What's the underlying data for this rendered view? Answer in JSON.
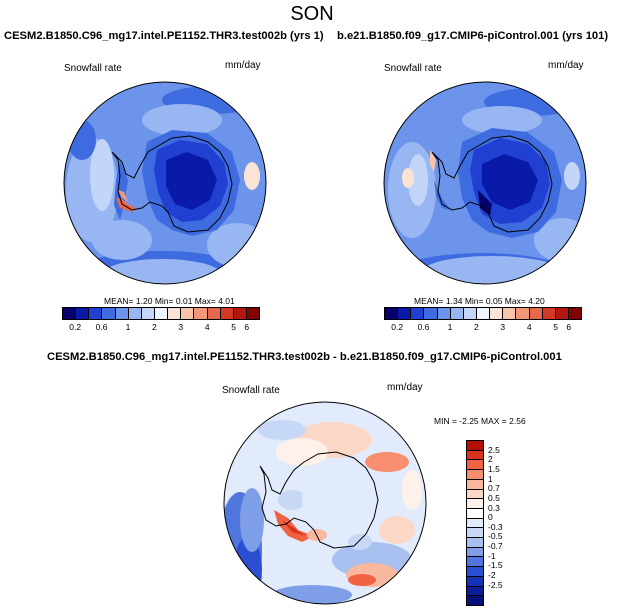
{
  "page": {
    "title": "SON"
  },
  "panels": [
    {
      "id": "top-left",
      "case_title": "CESM2.B1850.C96_mg17.intel.PE1152.THR3.test002b (yrs 1)",
      "variable": "Snowfall rate",
      "units": "mm/day",
      "stats": {
        "mean_label": "MEAN=",
        "mean": "1.20",
        "min_label": "Min=",
        "min": "0.01",
        "max_label": "Max=",
        "max": "4.01"
      },
      "colorbar": {
        "colors": [
          "#08006b",
          "#0a1aa8",
          "#1f40d1",
          "#3f6be0",
          "#6b94ea",
          "#98b6f2",
          "#c3d5f8",
          "#eef4fd",
          "#fbe3d6",
          "#f8c4ab",
          "#f39779",
          "#e8684c",
          "#d23a25",
          "#b3160f",
          "#830302"
        ],
        "labels": [
          "0.2",
          "0.6",
          "1",
          "2",
          "3",
          "4",
          "5",
          "6"
        ]
      }
    },
    {
      "id": "top-right",
      "case_title": "b.e21.B1850.f09_g17.CMIP6-piControl.001 (yrs 101)",
      "variable": "Snowfall rate",
      "units": "mm/day",
      "stats": {
        "mean_label": "MEAN=",
        "mean": "1.34",
        "min_label": "Min=",
        "min": "0.05",
        "max_label": "Max=",
        "max": "4.20"
      },
      "colorbar": {
        "colors": [
          "#08006b",
          "#0a1aa8",
          "#1f40d1",
          "#3f6be0",
          "#6b94ea",
          "#98b6f2",
          "#c3d5f8",
          "#eef4fd",
          "#fbe3d6",
          "#f8c4ab",
          "#f39779",
          "#e8684c",
          "#d23a25",
          "#b3160f",
          "#830302"
        ],
        "labels": [
          "0.2",
          "0.6",
          "1",
          "2",
          "3",
          "4",
          "5",
          "6"
        ]
      }
    },
    {
      "id": "bottom-diff",
      "case_title": "CESM2.B1850.C96_mg17.intel.PE1152.THR3.test002b - b.e21.B1850.f09_g17.CMIP6-piControl.001",
      "variable": "Snowfall rate",
      "units": "mm/day",
      "stats": {
        "min_label": "MIN =",
        "min": "-2.25",
        "max_label": "MAX =",
        "max": "2.56"
      },
      "colorbar": {
        "colors": [
          "#b30f05",
          "#d9331d",
          "#ef6242",
          "#f68e6f",
          "#f9b79d",
          "#fbd7c6",
          "#fdf1e9",
          "#ffffff",
          "#e1ebfb",
          "#c7d8f6",
          "#a7c0f0",
          "#7e9ee8",
          "#5077de",
          "#2a4fd3",
          "#1433b8",
          "#0d1e9a",
          "#061078"
        ],
        "labels": [
          "2.5",
          "2",
          "1.5",
          "1",
          "0.7",
          "0.5",
          "0.3",
          "0",
          "-0.3",
          "-0.5",
          "-0.7",
          "-1",
          "-1.5",
          "-2",
          "-2.5"
        ]
      }
    }
  ]
}
